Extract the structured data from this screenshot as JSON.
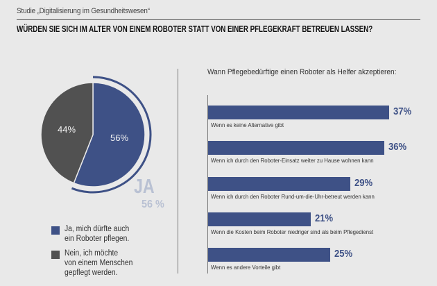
{
  "header": {
    "subtitle": "Studie „Digitalisierung im Gesundheitswesen“",
    "title": "WÜRDEN SIE SICH IM ALTER VON EINEM ROBOTER STATT VON EINER PFLEGEKRAFT BETREUEN LASSEN?"
  },
  "colors": {
    "yes": "#3e5186",
    "no": "#515151",
    "highlight_text": "#b9c1d3",
    "background": "#e9e9e9"
  },
  "callout": {
    "label": "JA",
    "value": "56 %"
  },
  "legend": [
    {
      "label_line1": "Ja, mich dürfte auch",
      "label_line2": "ein Roboter pflegen.",
      "label_line3": "",
      "color": "#3e5186"
    },
    {
      "label_line1": "Nein, ich möchte",
      "label_line2": "von einem Menschen",
      "label_line3": "gepflegt werden.",
      "color": "#515151"
    }
  ],
  "chart_data": [
    {
      "type": "pie",
      "title": "Würden Sie sich im Alter von einem Roboter statt von einer Pflegekraft betreuen lassen?",
      "slices": [
        {
          "name": "Ja, mich dürfte auch ein Roboter pflegen.",
          "value": 56,
          "label": "56%",
          "color": "#3e5186"
        },
        {
          "name": "Nein, ich möchte von einem Menschen gepflegt werden.",
          "value": 44,
          "label": "44%",
          "color": "#515151"
        }
      ],
      "start": "12 o'clock",
      "direction": "clockwise",
      "annotation": "JA 56 %"
    },
    {
      "type": "bar",
      "orientation": "horizontal",
      "title": "Wann Pflegebedürftige einen Roboter als Helfer akzeptieren:",
      "xlabel": "",
      "ylabel": "",
      "unit": "%",
      "categories": [
        "Wenn es keine Alternative gibt",
        "Wenn ich durch den Roboter-Einsatz weiter zu Hause wohnen kann",
        "Wenn ich durch den Roboter Rund-um-die-Uhr-betreut werden kann",
        "Wenn die Kosten beim Roboter niedriger sind als beim Pflegedienst",
        "Wenn es andere Vorteile gibt"
      ],
      "values": [
        37,
        36,
        29,
        21,
        25
      ],
      "value_labels": [
        "37%",
        "36%",
        "29%",
        "21%",
        "25%"
      ],
      "xlim": [
        0,
        40
      ],
      "grid": false,
      "color": "#3e5186"
    }
  ]
}
